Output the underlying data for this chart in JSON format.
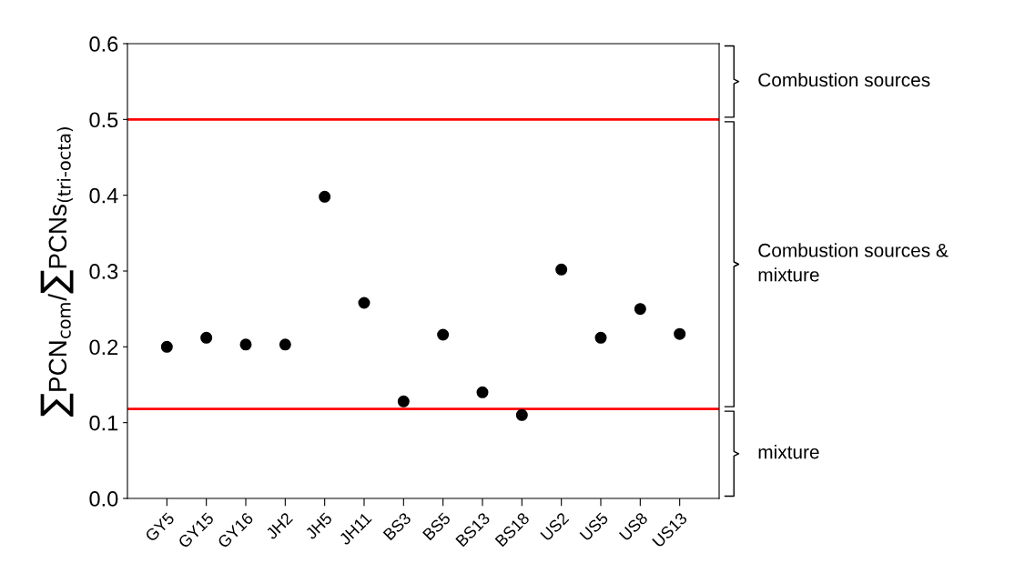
{
  "chart_data": {
    "type": "scatter",
    "ylabel": "∑PCN$_{com}$/∑PCNs$_{(tri-octa)}$",
    "categories": [
      "GY5",
      "GY15",
      "GY16",
      "JH2",
      "JH5",
      "JH11",
      "BS3",
      "BS5",
      "BS13",
      "BS18",
      "US2",
      "US5",
      "US8",
      "US13"
    ],
    "series": [
      {
        "color": "#000000",
        "values": [
          0.2,
          0.212,
          0.203,
          0.203,
          0.398,
          0.258,
          0.128,
          0.216,
          0.14,
          0.11,
          0.302,
          0.212,
          0.25,
          0.217
        ]
      }
    ],
    "ylim": [
      0,
      0.6
    ],
    "yticks": [
      {
        "value": 0,
        "label": "0.0"
      },
      0.1,
      0.2,
      0.3,
      0.4,
      0.5,
      0.6
    ],
    "marker": "circle",
    "grid": false,
    "legend": false,
    "ref_lines": [
      {
        "axis": "y",
        "value": 0.5,
        "color": "#ff0000"
      },
      {
        "axis": "y",
        "value": 0.118,
        "color": "#ff0000"
      }
    ],
    "annotations": [
      "Combustion sources",
      "Combustion sources &\nmixture",
      "mixture"
    ]
  }
}
